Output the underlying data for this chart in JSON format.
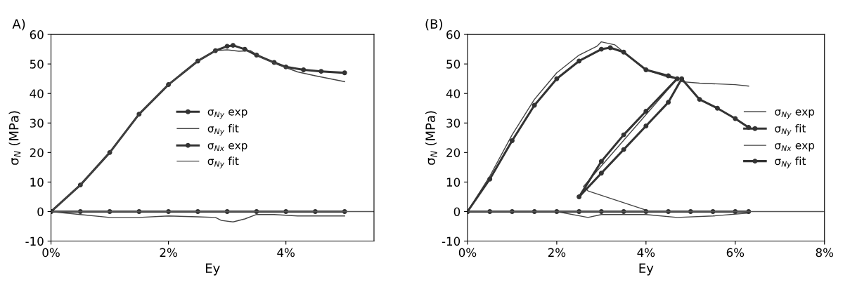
{
  "chart_data": [
    {
      "type": "line",
      "title": "A)",
      "xlabel": "Ey",
      "ylabel": "σ$_{N}$ (MPa)",
      "xlim": [
        0,
        5.5
      ],
      "ylim": [
        -10,
        60
      ],
      "xticks": [
        {
          "value": 0,
          "label": "0%"
        },
        {
          "value": 2,
          "label": "2%"
        },
        {
          "value": 4,
          "label": "4%"
        }
      ],
      "yticks": [
        -10,
        0,
        10,
        20,
        30,
        40,
        50,
        60
      ],
      "grid": false,
      "legend": "center",
      "ref_lines": [
        {
          "axis": "y",
          "value": 0,
          "color": "#555555"
        }
      ],
      "series": [
        {
          "name": "σ$_{Ny}$ exp",
          "color": "#333333",
          "marker": "circle",
          "x": [
            0,
            0.5,
            1,
            1.5,
            2,
            2.5,
            2.8,
            3.0,
            3.1,
            3.3,
            3.5,
            3.8,
            4.0,
            4.3,
            4.6,
            5.0
          ],
          "values": [
            0,
            9,
            20,
            33,
            43,
            51,
            54.5,
            56,
            56.3,
            55,
            53,
            50.5,
            49,
            48,
            47.5,
            47
          ]
        },
        {
          "name": "σ$_{Ny}$ fit",
          "color": "#444444",
          "marker": "none",
          "x": [
            0,
            0.5,
            1,
            1.5,
            2,
            2.5,
            2.8,
            3.0,
            3.2,
            3.4,
            3.6,
            3.9,
            4.2,
            4.5,
            5.0
          ],
          "values": [
            0,
            9,
            20,
            33,
            43,
            51,
            54.5,
            54.8,
            54.3,
            54.5,
            52,
            49.5,
            47.3,
            46,
            44
          ]
        },
        {
          "name": "σ$_{Nx}$ exp",
          "color": "#333333",
          "marker": "circle",
          "x": [
            0,
            0.5,
            1,
            1.5,
            2,
            2.5,
            3,
            3.5,
            4,
            4.5,
            5.0
          ],
          "values": [
            0,
            0,
            0,
            0,
            0,
            0,
            0,
            0,
            0,
            0,
            0
          ]
        },
        {
          "name": "σ$_{Ny}$ fit",
          "color": "#444444",
          "marker": "none",
          "x": [
            0,
            0.5,
            1,
            1.5,
            2,
            2.5,
            2.8,
            2.9,
            3.1,
            3.3,
            3.5,
            3.8,
            4.2,
            5.0
          ],
          "values": [
            0,
            -1,
            -2,
            -2,
            -1.5,
            -1.8,
            -2,
            -3,
            -3.5,
            -2.5,
            -1,
            -1,
            -1.5,
            -1.5
          ]
        }
      ]
    },
    {
      "type": "line",
      "title": "(B)",
      "xlabel": "Ey",
      "ylabel": "σ$_{N}$ (MPa)",
      "xlim": [
        0,
        8
      ],
      "ylim": [
        -10,
        60
      ],
      "xticks": [
        {
          "value": 0,
          "label": "0%"
        },
        {
          "value": 2,
          "label": "2%"
        },
        {
          "value": 4,
          "label": "4%"
        },
        {
          "value": 6,
          "label": "6%"
        },
        {
          "value": 8,
          "label": "8%"
        }
      ],
      "yticks": [
        -10,
        0,
        10,
        20,
        30,
        40,
        50,
        60
      ],
      "grid": false,
      "legend": "center right",
      "ref_lines": [
        {
          "axis": "y",
          "value": 0,
          "color": "#555555"
        }
      ],
      "series": [
        {
          "name": "σ$_{Ny}$ exp",
          "color": "#444444",
          "marker": "none",
          "x": [
            0,
            0.5,
            1,
            1.5,
            2,
            2.5,
            2.9,
            3.0,
            3.3,
            3.5,
            4.0,
            4.5,
            4.7,
            2.6,
            2.7,
            4.0,
            null,
            4.8,
            5.2,
            6.0,
            6.3
          ],
          "values": [
            0,
            12,
            26,
            38,
            47,
            53,
            56,
            57.5,
            56.5,
            54,
            48,
            45.5,
            45,
            8.5,
            7,
            0.5,
            null,
            44,
            43.5,
            43,
            42.5
          ]
        },
        {
          "name": "σ$_{Ny}$ fit",
          "color": "#333333",
          "marker": "circle",
          "x": [
            0,
            0.5,
            1,
            1.5,
            2,
            2.5,
            3.0,
            3.2,
            3.5,
            4.0,
            4.5,
            4.7,
            4.0,
            3.5,
            3.0,
            2.5,
            3.0,
            3.5,
            4.0,
            4.5,
            4.8,
            5.2,
            5.6,
            6.0,
            6.3
          ],
          "values": [
            0,
            11,
            24,
            36,
            45,
            51,
            55,
            55.5,
            54,
            48,
            46,
            45,
            34,
            26,
            17,
            5,
            13,
            21,
            29,
            37,
            45,
            38,
            35,
            31.5,
            28.5
          ]
        },
        {
          "name": "σ$_{Nx}$ exp",
          "color": "#444444",
          "marker": "none",
          "x": [
            0,
            1,
            2,
            2.7,
            3.0,
            4.0,
            4.7,
            5.5,
            6.3
          ],
          "values": [
            0,
            0,
            0,
            -2,
            -1,
            -1,
            -2,
            -1.5,
            -0.5
          ]
        },
        {
          "name": "σ$_{Ny}$ fit",
          "color": "#333333",
          "marker": "circle",
          "x": [
            0,
            0.5,
            1,
            1.5,
            2,
            2.5,
            3,
            3.5,
            4,
            4.5,
            5,
            5.5,
            6,
            6.3
          ],
          "values": [
            0,
            0,
            0,
            0,
            0,
            0,
            0,
            0,
            0,
            0,
            0,
            0,
            0,
            0
          ]
        }
      ]
    }
  ]
}
